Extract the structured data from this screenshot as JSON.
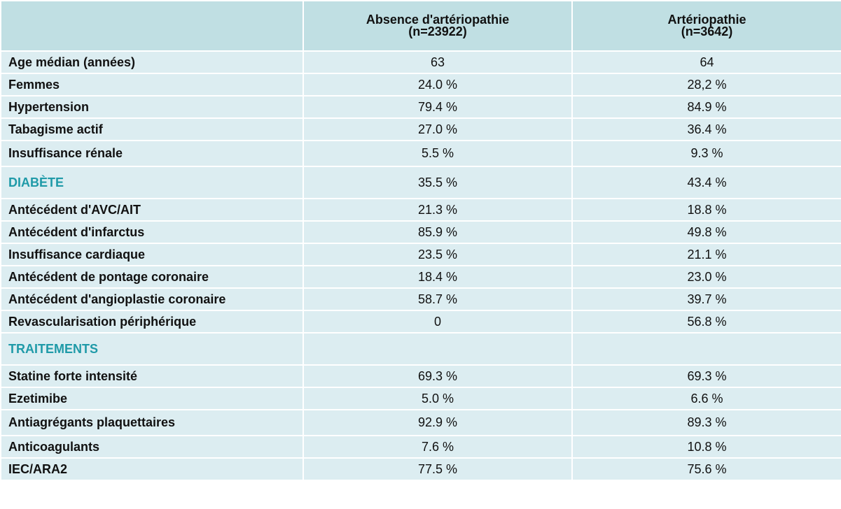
{
  "header": {
    "col1": "",
    "col2_line1": "Absence d'artériopathie",
    "col2_line2": "(n=23922)",
    "col3_line1": "Artériopathie",
    "col3_line2": "(n=3642)"
  },
  "rows": [
    {
      "label": "Age médian (années)",
      "a": "63",
      "b": "64"
    },
    {
      "label": "Femmes",
      "a": "24.0 %",
      "b": "28,2 %"
    },
    {
      "label": "Hypertension",
      "a": "79.4 %",
      "b": "84.9 %"
    },
    {
      "label": "Tabagisme actif",
      "a": "27.0 %",
      "b": "36.4 %"
    },
    {
      "label": "Insuffisance rénale",
      "a": "5.5 %",
      "b": "9.3 %"
    },
    {
      "label": "DIABÈTE",
      "a": "35.5 %",
      "b": "43.4 %"
    },
    {
      "label": "Antécédent d'AVC/AIT",
      "a": "21.3 %",
      "b": "18.8 %"
    },
    {
      "label": "Antécédent d'infarctus",
      "a": "85.9 %",
      "b": "49.8 %"
    },
    {
      "label": "Insuffisance cardiaque",
      "a": "23.5 %",
      "b": "21.1 %"
    },
    {
      "label": "Antécédent de pontage coronaire",
      "a": "18.4 %",
      "b": "23.0 %"
    },
    {
      "label": "Antécédent d'angioplastie coronaire",
      "a": "58.7 %",
      "b": "39.7 %"
    },
    {
      "label": "Revascularisation périphérique",
      "a": "0",
      "b": "56.8 %"
    },
    {
      "label": "TRAITEMENTS",
      "a": "",
      "b": ""
    },
    {
      "label": "Statine forte intensité",
      "a": "69.3 %",
      "b": "69.3 %"
    },
    {
      "label": "Ezetimibe",
      "a": "5.0 %",
      "b": "6.6 %"
    },
    {
      "label": "Antiagrégants plaquettaires",
      "a": "92.9 %",
      "b": "89.3 %"
    },
    {
      "label": "Anticoagulants",
      "a": "7.6 %",
      "b": "10.8 %"
    },
    {
      "label": "IEC/ARA2",
      "a": "77.5 %",
      "b": "75.6 %"
    }
  ],
  "colors": {
    "header_bg": "#c0dfe3",
    "row_bg": "#dcedf1",
    "section_text": "#1f9aa8"
  }
}
